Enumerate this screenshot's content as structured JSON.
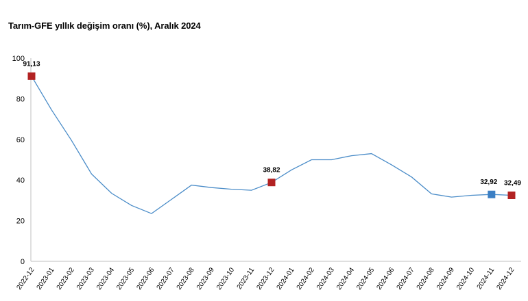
{
  "chart_data": {
    "type": "line",
    "title": "Tarım-GFE yıllık değişim oranı (%), Aralık 2024",
    "xlabel": "",
    "ylabel": "",
    "ylim": [
      0,
      100
    ],
    "yticks": [
      0,
      20,
      40,
      60,
      80,
      100
    ],
    "categories": [
      "2022-12",
      "2023-01",
      "2023-02",
      "2023-03",
      "2023-04",
      "2023-05",
      "2023-06",
      "2023-07",
      "2023-08",
      "2023-09",
      "2023-10",
      "2023-11",
      "2023-12",
      "2024-01",
      "2024-02",
      "2024-03",
      "2024-04",
      "2024-05",
      "2024-06",
      "2024-07",
      "2024-08",
      "2024-09",
      "2024-10",
      "2024-11",
      "2024-12"
    ],
    "series": [
      {
        "name": "Tarım-GFE yıllık değişim oranı (%)",
        "values": [
          91.13,
          74.5,
          59.5,
          43.0,
          33.5,
          27.5,
          23.5,
          30.5,
          37.5,
          36.3,
          35.5,
          35.0,
          38.82,
          45.0,
          50.0,
          50.0,
          52.0,
          53.0,
          47.5,
          41.5,
          33.2,
          31.6,
          32.5,
          32.92,
          32.49
        ],
        "color": "#4a8cc8"
      }
    ],
    "highlighted_points": [
      {
        "index": 0,
        "label": "91,13",
        "color": "#b22222"
      },
      {
        "index": 12,
        "label": "38,82",
        "color": "#b22222"
      },
      {
        "index": 23,
        "label": "32,92",
        "color": "#3b7fc4"
      },
      {
        "index": 24,
        "label": "32,49",
        "color": "#b22222"
      }
    ],
    "grid": false,
    "legend": "none"
  }
}
